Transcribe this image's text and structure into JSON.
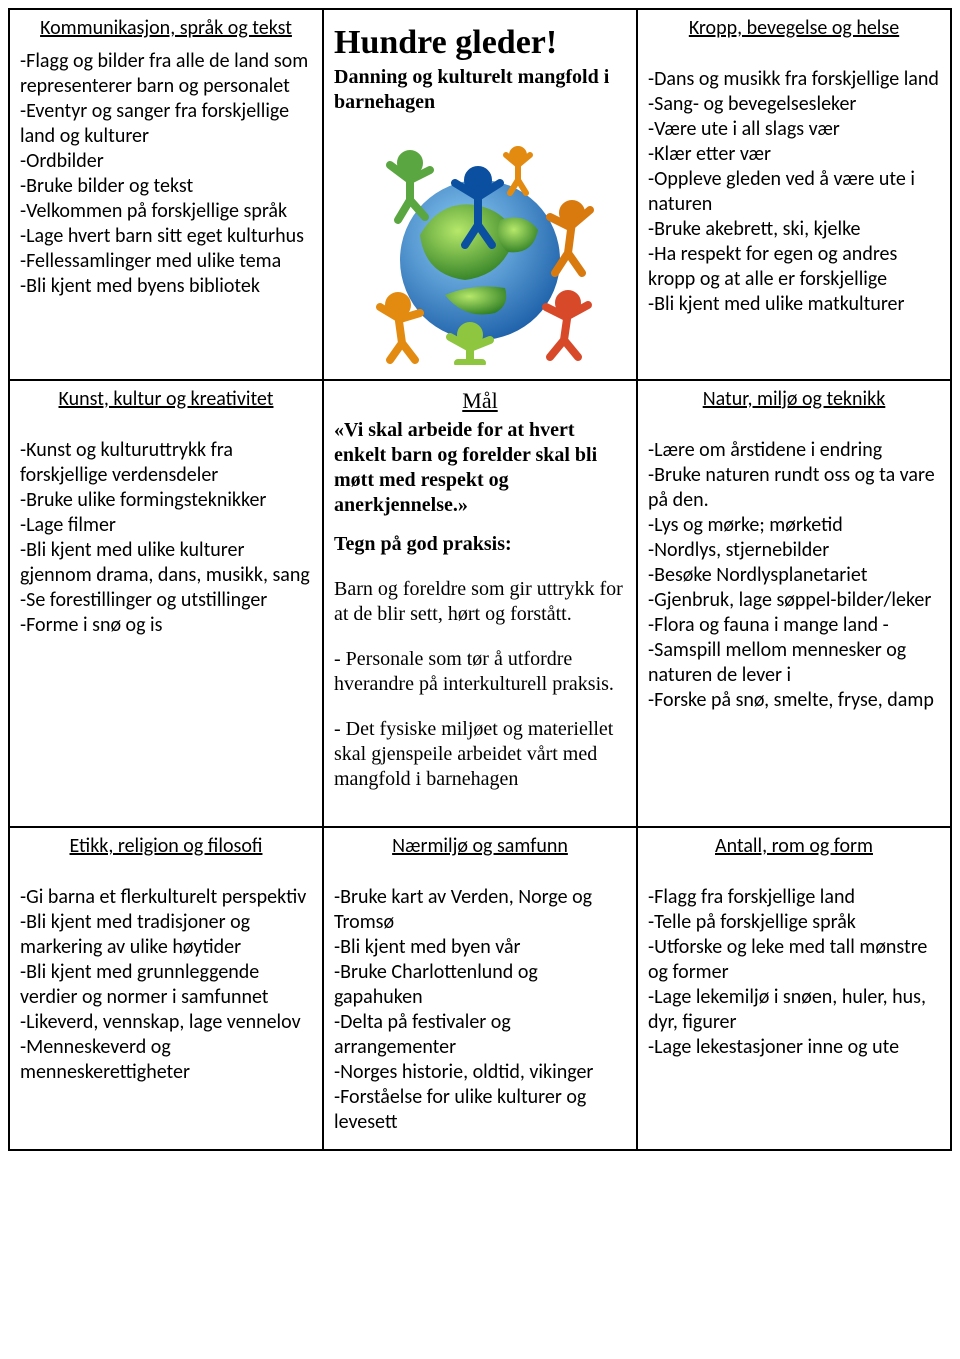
{
  "cells": {
    "c1": {
      "heading": "Kommunikasjon, språk og tekst",
      "items": [
        "-Flagg og bilder fra alle de land som representerer barn og personalet",
        "-Eventyr og sanger fra forskjellige land og kulturer",
        "-Ordbilder",
        "-Bruke bilder og tekst",
        "-Velkommen på forskjellige språk",
        "-Lage hvert barn sitt eget kulturhus",
        "-Fellessamlinger med ulike tema",
        "-Bli kjent med byens bibliotek"
      ]
    },
    "c2": {
      "title": "Hundre gleder!",
      "subtitle": "Danning og kulturelt mangfold i barnehagen"
    },
    "c3": {
      "heading": "Kropp, bevegelse og helse",
      "items": [
        "-Dans og musikk fra forskjellige land",
        "-Sang- og bevegelsesleker",
        "-Være ute i all slags vær",
        "-Klær etter vær",
        "-Oppleve gleden ved å være ute i naturen",
        "-Bruke akebrett, ski, kjelke",
        "-Ha respekt for egen og andres kropp og at alle er forskjellige",
        "-Bli kjent med ulike matkulturer"
      ]
    },
    "c4": {
      "heading": "Kunst, kultur og kreativitet",
      "items": [
        "-Kunst og kulturuttrykk fra forskjellige verdensdeler",
        "-Bruke ulike formingsteknikker",
        "-Lage filmer",
        "-Bli kjent med ulike kulturer gjennom drama, dans, musikk, sang",
        "-Se forestillinger og utstillinger",
        "-Forme i snø og is"
      ]
    },
    "c5": {
      "heading": "Mål",
      "quote": "«Vi skal arbeide for at hvert enkelt barn og forelder skal bli møtt med respekt og anerkjennelse.»",
      "sub": "Tegn på god praksis:",
      "body": [
        "Barn og foreldre som gir uttrykk for at de blir sett, hørt og forstått.",
        "- Personale som tør å utfordre hverandre på interkulturell praksis.",
        "- Det fysiske miljøet og materiellet skal gjenspeile arbeidet vårt med mangfold i barnehagen"
      ]
    },
    "c6": {
      "heading": "Natur, miljø og teknikk",
      "items": [
        "-Lære om årstidene i endring",
        "-Bruke naturen rundt oss og ta vare på den.",
        "-Lys og mørke; mørketid",
        "-Nordlys, stjernebilder",
        "-Besøke Nordlysplanetariet",
        "-Gjenbruk, lage søppel-bilder/leker",
        "-Flora og fauna i mange land -",
        "-Samspill mellom mennesker og naturen de lever i",
        "-Forske på snø, smelte, fryse, damp"
      ]
    },
    "c7": {
      "heading": "Etikk, religion og filosofi",
      "items": [
        "-Gi barna et flerkulturelt perspektiv",
        "-Bli kjent med tradisjoner og markering av ulike høytider",
        "-Bli kjent med grunnleggende verdier og normer i samfunnet",
        "-Likeverd, vennskap, lage vennelov",
        "-Menneskeverd og menneskerettigheter"
      ]
    },
    "c8": {
      "heading": "Nærmiljø og samfunn",
      "items": [
        "-Bruke kart av Verden, Norge og Tromsø",
        "-Bli kjent med byen vår",
        "-Bruke Charlottenlund og gapahuken",
        "-Delta på festivaler og arrangementer",
        "-Norges historie, oldtid, vikinger",
        "-Forståelse for ulike kulturer og levesett"
      ]
    },
    "c9": {
      "heading": "Antall, rom og form",
      "items": [
        "-Flagg fra forskjellige land",
        "-Telle på forskjellige språk",
        "-Utforske og leke med tall mønstre og former",
        "-Lage lekemiljø i snøen, huler, hus, dyr, figurer",
        "-Lage lekestasjoner inne og ute"
      ]
    }
  },
  "globe": {
    "earth_grad_top": "#9be04a",
    "earth_grad_bot": "#3a8f2e",
    "ocean_grad_top": "#6fb8f0",
    "ocean_grad_bot": "#1c5fa8",
    "figure_colors": [
      "#0a4fa0",
      "#8fc63f",
      "#e38b10",
      "#e1242a",
      "#5aa640",
      "#d97a0f",
      "#d8492a"
    ]
  }
}
